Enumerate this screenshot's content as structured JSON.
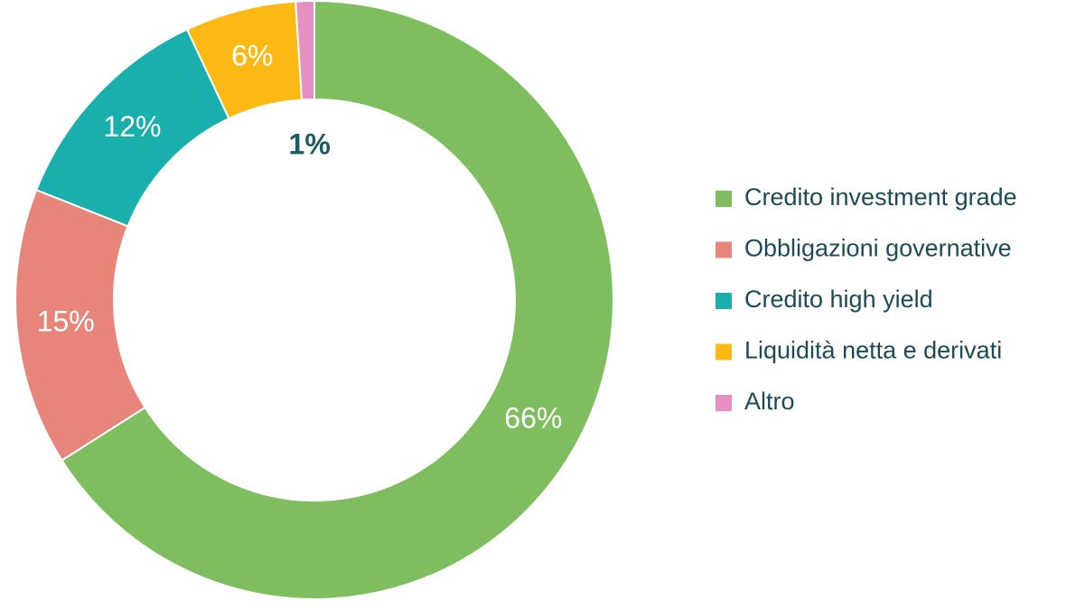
{
  "chart_data": {
    "type": "donut",
    "categories": [
      "Credito investment grade",
      "Obbligazioni governative",
      "Credito high yield",
      "Liquidità netta e derivati",
      "Altro"
    ],
    "values": [
      66,
      15,
      12,
      6,
      1
    ],
    "value_labels": [
      "66%",
      "15%",
      "12%",
      "6%",
      "1%"
    ],
    "colors": [
      "#7fbe5f",
      "#e8857a",
      "#19afac",
      "#fdb913",
      "#e78fc1"
    ],
    "legend": "right"
  }
}
